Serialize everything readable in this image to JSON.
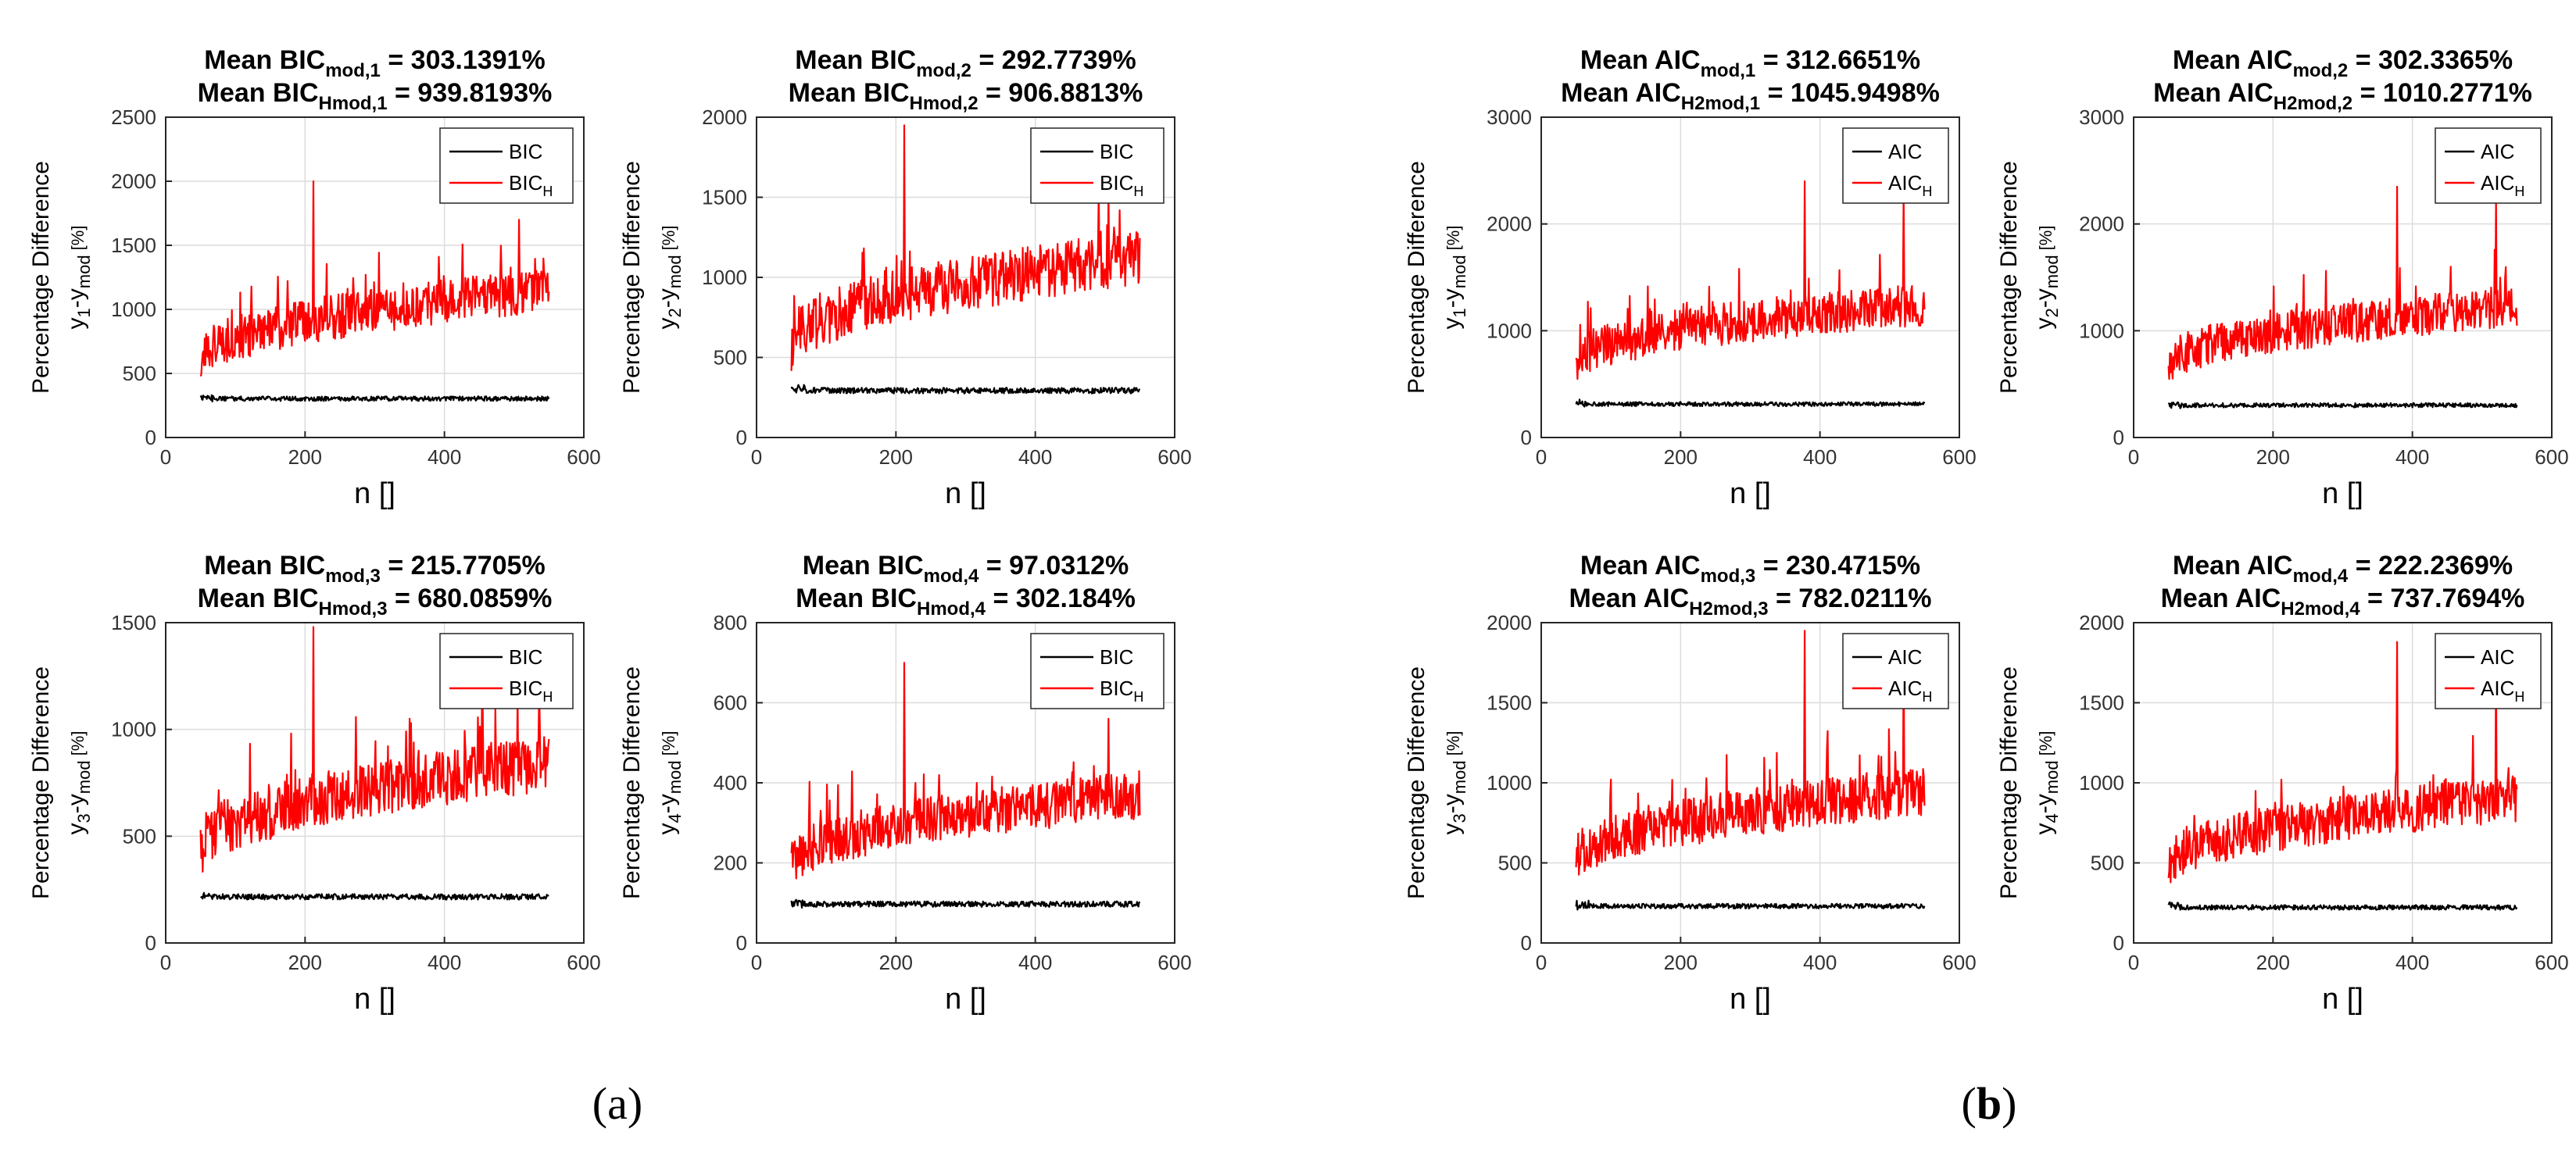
{
  "panel_labels": [
    {
      "open": "(",
      "letter": "a",
      "close": ")"
    },
    {
      "open": "(",
      "letter": "b",
      "close": ")"
    }
  ],
  "colors": {
    "black_series": "#000000",
    "red_series": "#ff0000",
    "grid": "#dcdcdc",
    "axis": "#262626"
  },
  "chart_data": [
    {
      "type": "line",
      "title_line1": {
        "prefix": "Mean BIC",
        "sub": "mod,1",
        "suffix": " = 303.1391%"
      },
      "title_line2": {
        "prefix": "Mean BIC",
        "sub": "Hmod,1",
        "suffix": " = 939.8193%"
      },
      "xlabel": "n []",
      "ylabel_line1": "Percentage Difference",
      "ylabel_line2": {
        "a": "y",
        "a_sub": "1",
        "b": "-y",
        "b_sub": "mod",
        "c": " [%]"
      },
      "xlim": [
        0,
        600
      ],
      "ylim": [
        0,
        2500
      ],
      "xticks": [
        0,
        200,
        400,
        600
      ],
      "yticks": [
        0,
        500,
        1000,
        1500,
        2000,
        2500
      ],
      "grid": true,
      "legend_position": "top-right",
      "series": [
        {
          "name": "BIC",
          "name_sub": "",
          "color": "#000000",
          "x_range": [
            50,
            550
          ],
          "mean": 303,
          "noise": 18,
          "slope": 0
        },
        {
          "name": "BIC",
          "name_sub": "H",
          "color": "#ff0000",
          "x_range": [
            50,
            550
          ],
          "start": 600,
          "end": 1150,
          "noise": 175,
          "spikes": [
            [
              212,
              2000
            ],
            [
              507,
              1700
            ]
          ]
        }
      ]
    },
    {
      "type": "line",
      "title_line1": {
        "prefix": "Mean BIC",
        "sub": "mod,2",
        "suffix": " = 292.7739%"
      },
      "title_line2": {
        "prefix": "Mean BIC",
        "sub": "Hmod,2",
        "suffix": " = 906.8813%"
      },
      "xlabel": "n []",
      "ylabel_line1": "Percentage Difference",
      "ylabel_line2": {
        "a": "y",
        "a_sub": "2",
        "b": "-y",
        "b_sub": "mod",
        "c": " [%]"
      },
      "xlim": [
        0,
        600
      ],
      "ylim": [
        0,
        2000
      ],
      "xticks": [
        0,
        200,
        400,
        600
      ],
      "yticks": [
        0,
        500,
        1000,
        1500,
        2000
      ],
      "grid": true,
      "legend_position": "top-right",
      "series": [
        {
          "name": "BIC",
          "name_sub": "",
          "color": "#000000",
          "x_range": [
            50,
            550
          ],
          "mean": 293,
          "noise": 18,
          "slope": 0
        },
        {
          "name": "BIC",
          "name_sub": "H",
          "color": "#ff0000",
          "x_range": [
            50,
            550
          ],
          "start": 580,
          "end": 1120,
          "noise": 170,
          "spikes": [
            [
              212,
              1950
            ],
            [
              505,
              1550
            ]
          ]
        }
      ]
    },
    {
      "type": "line",
      "title_line1": {
        "prefix": "Mean BIC",
        "sub": "mod,3",
        "suffix": " = 215.7705%"
      },
      "title_line2": {
        "prefix": "Mean BIC",
        "sub": "Hmod,3",
        "suffix": " = 680.0859%"
      },
      "xlabel": "n []",
      "ylabel_line1": "Percentage Difference",
      "ylabel_line2": {
        "a": "y",
        "a_sub": "3",
        "b": "-y",
        "b_sub": "mod",
        "c": " [%]"
      },
      "xlim": [
        0,
        600
      ],
      "ylim": [
        0,
        1500
      ],
      "xticks": [
        0,
        200,
        400,
        600
      ],
      "yticks": [
        0,
        500,
        1000,
        1500
      ],
      "grid": true,
      "legend_position": "top-right",
      "series": [
        {
          "name": "BIC",
          "name_sub": "",
          "color": "#000000",
          "x_range": [
            50,
            550
          ],
          "mean": 216,
          "noise": 13,
          "slope": 0
        },
        {
          "name": "BIC",
          "name_sub": "H",
          "color": "#ff0000",
          "x_range": [
            50,
            550
          ],
          "start": 430,
          "end": 840,
          "noise": 130,
          "spikes": [
            [
              212,
              1480
            ],
            [
              505,
              1150
            ]
          ]
        }
      ]
    },
    {
      "type": "line",
      "title_line1": {
        "prefix": "Mean BIC",
        "sub": "mod,4",
        "suffix": " = 97.0312%"
      },
      "title_line2": {
        "prefix": "Mean BIC",
        "sub": "Hmod,4",
        "suffix": " = 302.184%"
      },
      "xlabel": "n []",
      "ylabel_line1": "Percentage Difference",
      "ylabel_line2": {
        "a": "y",
        "a_sub": "4",
        "b": "-y",
        "b_sub": "mod",
        "c": " [%]"
      },
      "xlim": [
        0,
        600
      ],
      "ylim": [
        0,
        800
      ],
      "xticks": [
        0,
        200,
        400,
        600
      ],
      "yticks": [
        0,
        200,
        400,
        600,
        800
      ],
      "grid": true,
      "legend_position": "top-right",
      "series": [
        {
          "name": "BIC",
          "name_sub": "",
          "color": "#000000",
          "x_range": [
            50,
            550
          ],
          "mean": 97,
          "noise": 7,
          "slope": 0
        },
        {
          "name": "BIC",
          "name_sub": "H",
          "color": "#ff0000",
          "x_range": [
            50,
            550
          ],
          "start": 195,
          "end": 370,
          "noise": 60,
          "spikes": [
            [
              212,
              700
            ],
            [
              505,
              560
            ]
          ]
        }
      ]
    },
    {
      "type": "line",
      "title_line1": {
        "prefix": "Mean AIC",
        "sub": "mod,1",
        "suffix": " = 312.6651%"
      },
      "title_line2": {
        "prefix": "Mean AIC",
        "sub": "H2mod,1",
        "suffix": " = 1045.9498%"
      },
      "xlabel": "n []",
      "ylabel_line1": "Percentage Difference",
      "ylabel_line2": {
        "a": "y",
        "a_sub": "1",
        "b": "-y",
        "b_sub": "mod",
        "c": " [%]"
      },
      "xlim": [
        0,
        600
      ],
      "ylim": [
        0,
        3000
      ],
      "xticks": [
        0,
        200,
        400,
        600
      ],
      "yticks": [
        0,
        1000,
        2000,
        3000
      ],
      "grid": true,
      "legend_position": "top-right",
      "series": [
        {
          "name": "AIC",
          "name_sub": "",
          "color": "#000000",
          "x_range": [
            50,
            550
          ],
          "mean": 313,
          "noise": 20,
          "slope": 0
        },
        {
          "name": "AIC",
          "name_sub": "H",
          "color": "#ff0000",
          "x_range": [
            50,
            550
          ],
          "start": 700,
          "end": 1250,
          "noise": 200,
          "spikes": [
            [
              378,
              2400
            ],
            [
              520,
              2300
            ]
          ]
        }
      ]
    },
    {
      "type": "line",
      "title_line1": {
        "prefix": "Mean AIC",
        "sub": "mod,2",
        "suffix": " = 302.3365%"
      },
      "title_line2": {
        "prefix": "Mean AIC",
        "sub": "H2mod,2",
        "suffix": " = 1010.2771%"
      },
      "xlabel": "n []",
      "ylabel_line1": "Percentage Difference",
      "ylabel_line2": {
        "a": "y",
        "a_sub": "2",
        "b": "-y",
        "b_sub": "mod",
        "c": " [%]"
      },
      "xlim": [
        0,
        600
      ],
      "ylim": [
        0,
        3000
      ],
      "xticks": [
        0,
        200,
        400,
        600
      ],
      "yticks": [
        0,
        1000,
        2000,
        3000
      ],
      "grid": true,
      "legend_position": "top-right",
      "series": [
        {
          "name": "AIC",
          "name_sub": "",
          "color": "#000000",
          "x_range": [
            50,
            550
          ],
          "mean": 302,
          "noise": 20,
          "slope": 0
        },
        {
          "name": "AIC",
          "name_sub": "H",
          "color": "#ff0000",
          "x_range": [
            50,
            550
          ],
          "start": 680,
          "end": 1220,
          "noise": 190,
          "spikes": [
            [
              378,
              2350
            ],
            [
              520,
              2250
            ]
          ]
        }
      ]
    },
    {
      "type": "line",
      "title_line1": {
        "prefix": "Mean AIC",
        "sub": "mod,3",
        "suffix": " = 230.4715%"
      },
      "title_line2": {
        "prefix": "Mean AIC",
        "sub": "H2mod,3",
        "suffix": " = 782.0211%"
      },
      "xlabel": "n []",
      "ylabel_line1": "Percentage Difference",
      "ylabel_line2": {
        "a": "y",
        "a_sub": "3",
        "b": "-y",
        "b_sub": "mod",
        "c": " [%]"
      },
      "xlim": [
        0,
        600
      ],
      "ylim": [
        0,
        2000
      ],
      "xticks": [
        0,
        200,
        400,
        600
      ],
      "yticks": [
        0,
        500,
        1000,
        1500,
        2000
      ],
      "grid": true,
      "legend_position": "top-right",
      "series": [
        {
          "name": "AIC",
          "name_sub": "",
          "color": "#000000",
          "x_range": [
            50,
            550
          ],
          "mean": 230,
          "noise": 15,
          "slope": 0
        },
        {
          "name": "AIC",
          "name_sub": "H",
          "color": "#ff0000",
          "x_range": [
            50,
            550
          ],
          "start": 520,
          "end": 940,
          "noise": 150,
          "spikes": [
            [
              378,
              1950
            ],
            [
              520,
              1850
            ]
          ]
        }
      ]
    },
    {
      "type": "line",
      "title_line1": {
        "prefix": "Mean AIC",
        "sub": "mod,4",
        "suffix": " = 222.2369%"
      },
      "title_line2": {
        "prefix": "Mean AIC",
        "sub": "H2mod,4",
        "suffix": " = 737.7694%"
      },
      "xlabel": "n []",
      "ylabel_line1": "Percentage Difference",
      "ylabel_line2": {
        "a": "y",
        "a_sub": "4",
        "b": "-y",
        "b_sub": "mod",
        "c": " [%]"
      },
      "xlim": [
        0,
        600
      ],
      "ylim": [
        0,
        2000
      ],
      "xticks": [
        0,
        200,
        400,
        600
      ],
      "yticks": [
        0,
        500,
        1000,
        1500,
        2000
      ],
      "grid": true,
      "legend_position": "top-right",
      "series": [
        {
          "name": "AIC",
          "name_sub": "",
          "color": "#000000",
          "x_range": [
            50,
            550
          ],
          "mean": 222,
          "noise": 15,
          "slope": 0
        },
        {
          "name": "AIC",
          "name_sub": "H",
          "color": "#ff0000",
          "x_range": [
            50,
            550
          ],
          "start": 490,
          "end": 900,
          "noise": 145,
          "spikes": [
            [
              378,
              1880
            ],
            [
              520,
              1780
            ]
          ]
        }
      ]
    }
  ]
}
